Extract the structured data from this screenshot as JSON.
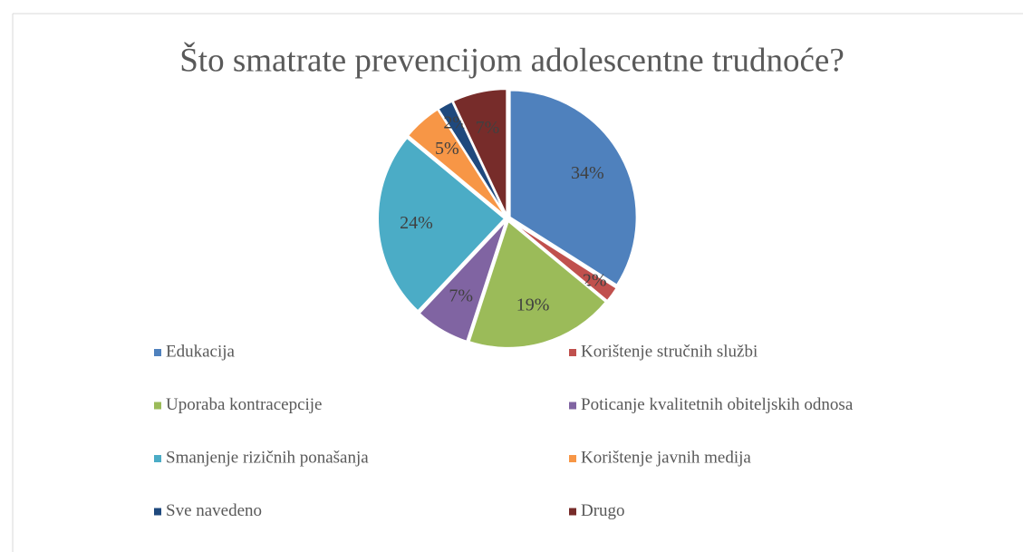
{
  "chart_data": {
    "type": "pie",
    "title": "Što smatrate prevencijom adolescentne trudnoće?",
    "categories": [
      "Edukacija",
      "Korištenje stručnih službi",
      "Uporaba kontracepcije",
      "Poticanje kvalitetnih obiteljskih odnosa",
      "Smanjenje rizičnih ponašanja",
      "Korištenje javnih medija",
      "Sve navedeno",
      "Drugo"
    ],
    "values": [
      34,
      2,
      19,
      7,
      24,
      5,
      2,
      7
    ],
    "value_labels": [
      "34%",
      "2%",
      "19%",
      "7%",
      "24%",
      "5%",
      "2%",
      "7%"
    ],
    "colors": [
      "#4f81bd",
      "#c0504d",
      "#9bbb59",
      "#8064a2",
      "#4bacc6",
      "#f79646",
      "#1f497d",
      "#772c2a"
    ],
    "legend": "bottom"
  }
}
